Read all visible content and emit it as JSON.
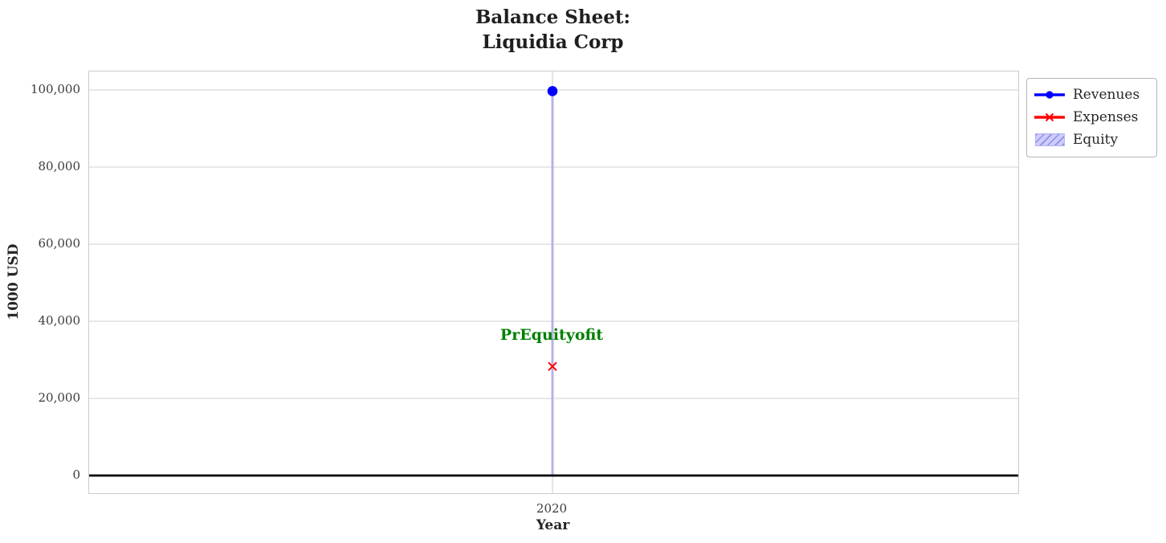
{
  "title": "Balance Sheet:\nLiquidia Corp",
  "axes": {
    "xlabel": "Year",
    "ylabel": "1000 USD",
    "xticks": [
      "2020"
    ],
    "yticks": [
      "0",
      "20,000",
      "40,000",
      "60,000",
      "80,000",
      "100,000"
    ]
  },
  "legend": {
    "items": [
      {
        "label": "Revenues",
        "type": "line-dot",
        "color": "#0000ff"
      },
      {
        "label": "Expenses",
        "type": "line-x",
        "color": "#ff0000"
      },
      {
        "label": "Equity",
        "type": "hatch-patch",
        "color": "#ccccff",
        "hatch_color": "#8f8fe0"
      }
    ]
  },
  "annotation": {
    "text": "PrEquityofit",
    "color": "#007f00"
  },
  "colors": {
    "grid": "#d9d9d9",
    "spine": "#cccccc",
    "zero_line": "#000000",
    "equity_bar": "#b4b4e6",
    "title_text": "#1f1f1f",
    "tick_text": "#3b3b3b"
  },
  "chart_data": {
    "type": "line",
    "x": [
      2020
    ],
    "series": [
      {
        "name": "Revenues",
        "type": "line",
        "marker": "circle",
        "color": "#0000ff",
        "values": [
          99700
        ]
      },
      {
        "name": "Expenses",
        "type": "line",
        "marker": "x",
        "color": "#ff0000",
        "values": [
          28300
        ]
      },
      {
        "name": "Equity",
        "type": "bar",
        "hatch": "///",
        "color": "#ccccff",
        "edge_color": "#8f8fe0",
        "values": [
          99500
        ]
      }
    ],
    "title": "Balance Sheet: Liquidia Corp",
    "xlabel": "Year",
    "ylabel": "1000 USD",
    "xticks": [
      2020
    ],
    "yticks": [
      0,
      20000,
      40000,
      60000,
      80000,
      100000
    ],
    "ylim": [
      -4600,
      104800
    ],
    "grid": true,
    "zero_line_y": 0,
    "legend_position": "outside upper right",
    "annotation": {
      "text": "PrEquityofit",
      "x": 2020,
      "y": 35600,
      "color": "#007f00"
    }
  }
}
